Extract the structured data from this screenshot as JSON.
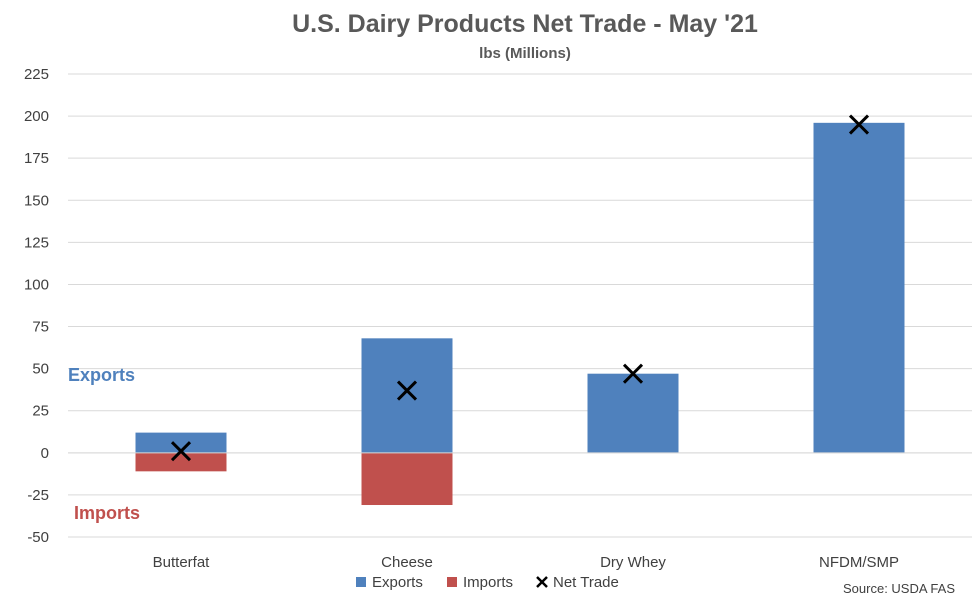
{
  "chart_data": {
    "type": "bar",
    "title": "U.S. Dairy Products Net Trade - May '21",
    "subtitle": "lbs (Millions)",
    "categories": [
      "Butterfat",
      "Cheese",
      "Dry Whey",
      "NFDM/SMP"
    ],
    "series": [
      {
        "name": "Exports",
        "type": "bar",
        "color": "#4f81bd",
        "values": [
          12,
          68,
          47,
          196
        ]
      },
      {
        "name": "Imports",
        "type": "bar",
        "color": "#c0504d",
        "values": [
          -11,
          -31,
          0,
          0
        ]
      },
      {
        "name": "Net Trade",
        "type": "scatter",
        "marker": "x-mark",
        "color": "#000000",
        "values": [
          1,
          37,
          47,
          195
        ]
      }
    ],
    "ylim": [
      -50,
      225
    ],
    "yticks": [
      "-50",
      "-25",
      "0",
      "25",
      "50",
      "75",
      "100",
      "125",
      "150",
      "175",
      "200",
      "225"
    ],
    "grid": true,
    "legend_position": "bottom",
    "annotations": [
      {
        "text": "Exports",
        "color": "#4f81bd"
      },
      {
        "text": "Imports",
        "color": "#c0504d"
      }
    ],
    "source": "Source: USDA FAS"
  }
}
